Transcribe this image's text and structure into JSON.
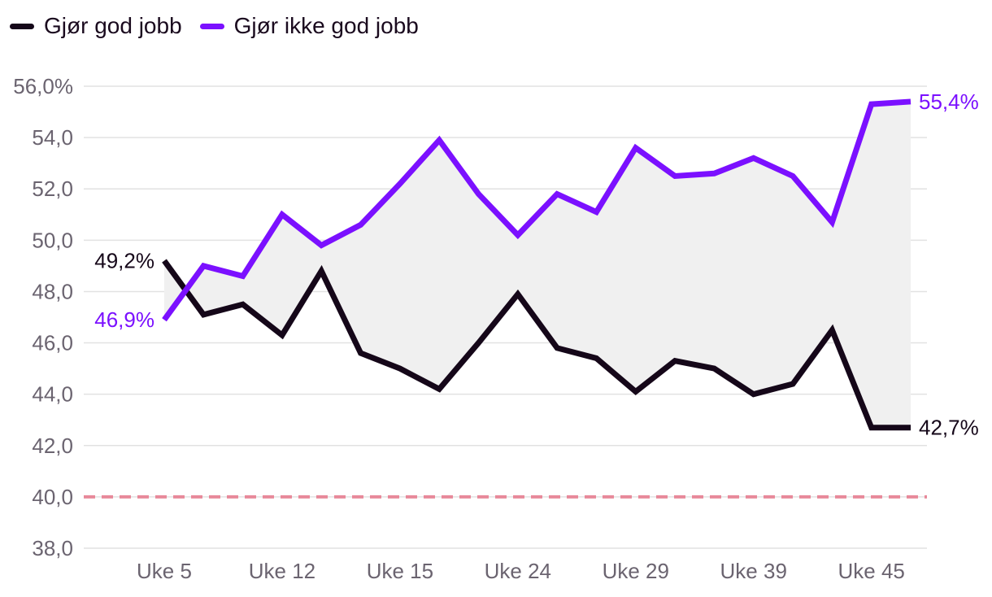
{
  "chart_data": {
    "type": "line",
    "title": "",
    "xlabel": "",
    "ylabel": "",
    "ylim": [
      38,
      56
    ],
    "yticks": [
      {
        "value": 56,
        "label": "56,0%"
      },
      {
        "value": 54,
        "label": "54,0"
      },
      {
        "value": 52,
        "label": "52,0"
      },
      {
        "value": 50,
        "label": "50,0"
      },
      {
        "value": 48,
        "label": "48,0"
      },
      {
        "value": 46,
        "label": "46,0"
      },
      {
        "value": 44,
        "label": "44,0"
      },
      {
        "value": 42,
        "label": "42,0"
      },
      {
        "value": 40,
        "label": "40,0"
      },
      {
        "value": 38,
        "label": "38,0"
      }
    ],
    "xticks": [
      {
        "index": 0,
        "label": "Uke 5"
      },
      {
        "index": 3,
        "label": "Uke 12"
      },
      {
        "index": 6,
        "label": "Uke 15"
      },
      {
        "index": 9,
        "label": "Uke 24"
      },
      {
        "index": 12,
        "label": "Uke 29"
      },
      {
        "index": 15,
        "label": "Uke 39"
      },
      {
        "index": 18,
        "label": "Uke 45"
      }
    ],
    "reference_line": {
      "value": 40,
      "color": "#e8899a",
      "style": "dashed"
    },
    "band_fill": "#f0f0f0",
    "series": [
      {
        "name": "Gjør god jobb",
        "color": "#150719",
        "values": [
          49.2,
          47.1,
          47.5,
          46.3,
          48.8,
          45.6,
          45.0,
          44.2,
          46.0,
          47.9,
          45.8,
          45.4,
          44.1,
          45.3,
          45.0,
          44.0,
          44.4,
          46.5,
          42.7,
          42.7
        ],
        "start_label": "49,2%",
        "end_label": "42,7%"
      },
      {
        "name": "Gjør ikke god jobb",
        "color": "#7b10ff",
        "values": [
          46.9,
          49.0,
          48.6,
          51.0,
          49.8,
          50.6,
          52.2,
          53.9,
          51.8,
          50.2,
          51.8,
          51.1,
          53.6,
          52.5,
          52.6,
          53.2,
          52.5,
          50.7,
          55.3,
          55.4
        ],
        "start_label": "46,9%",
        "end_label": "55,4%"
      }
    ]
  }
}
